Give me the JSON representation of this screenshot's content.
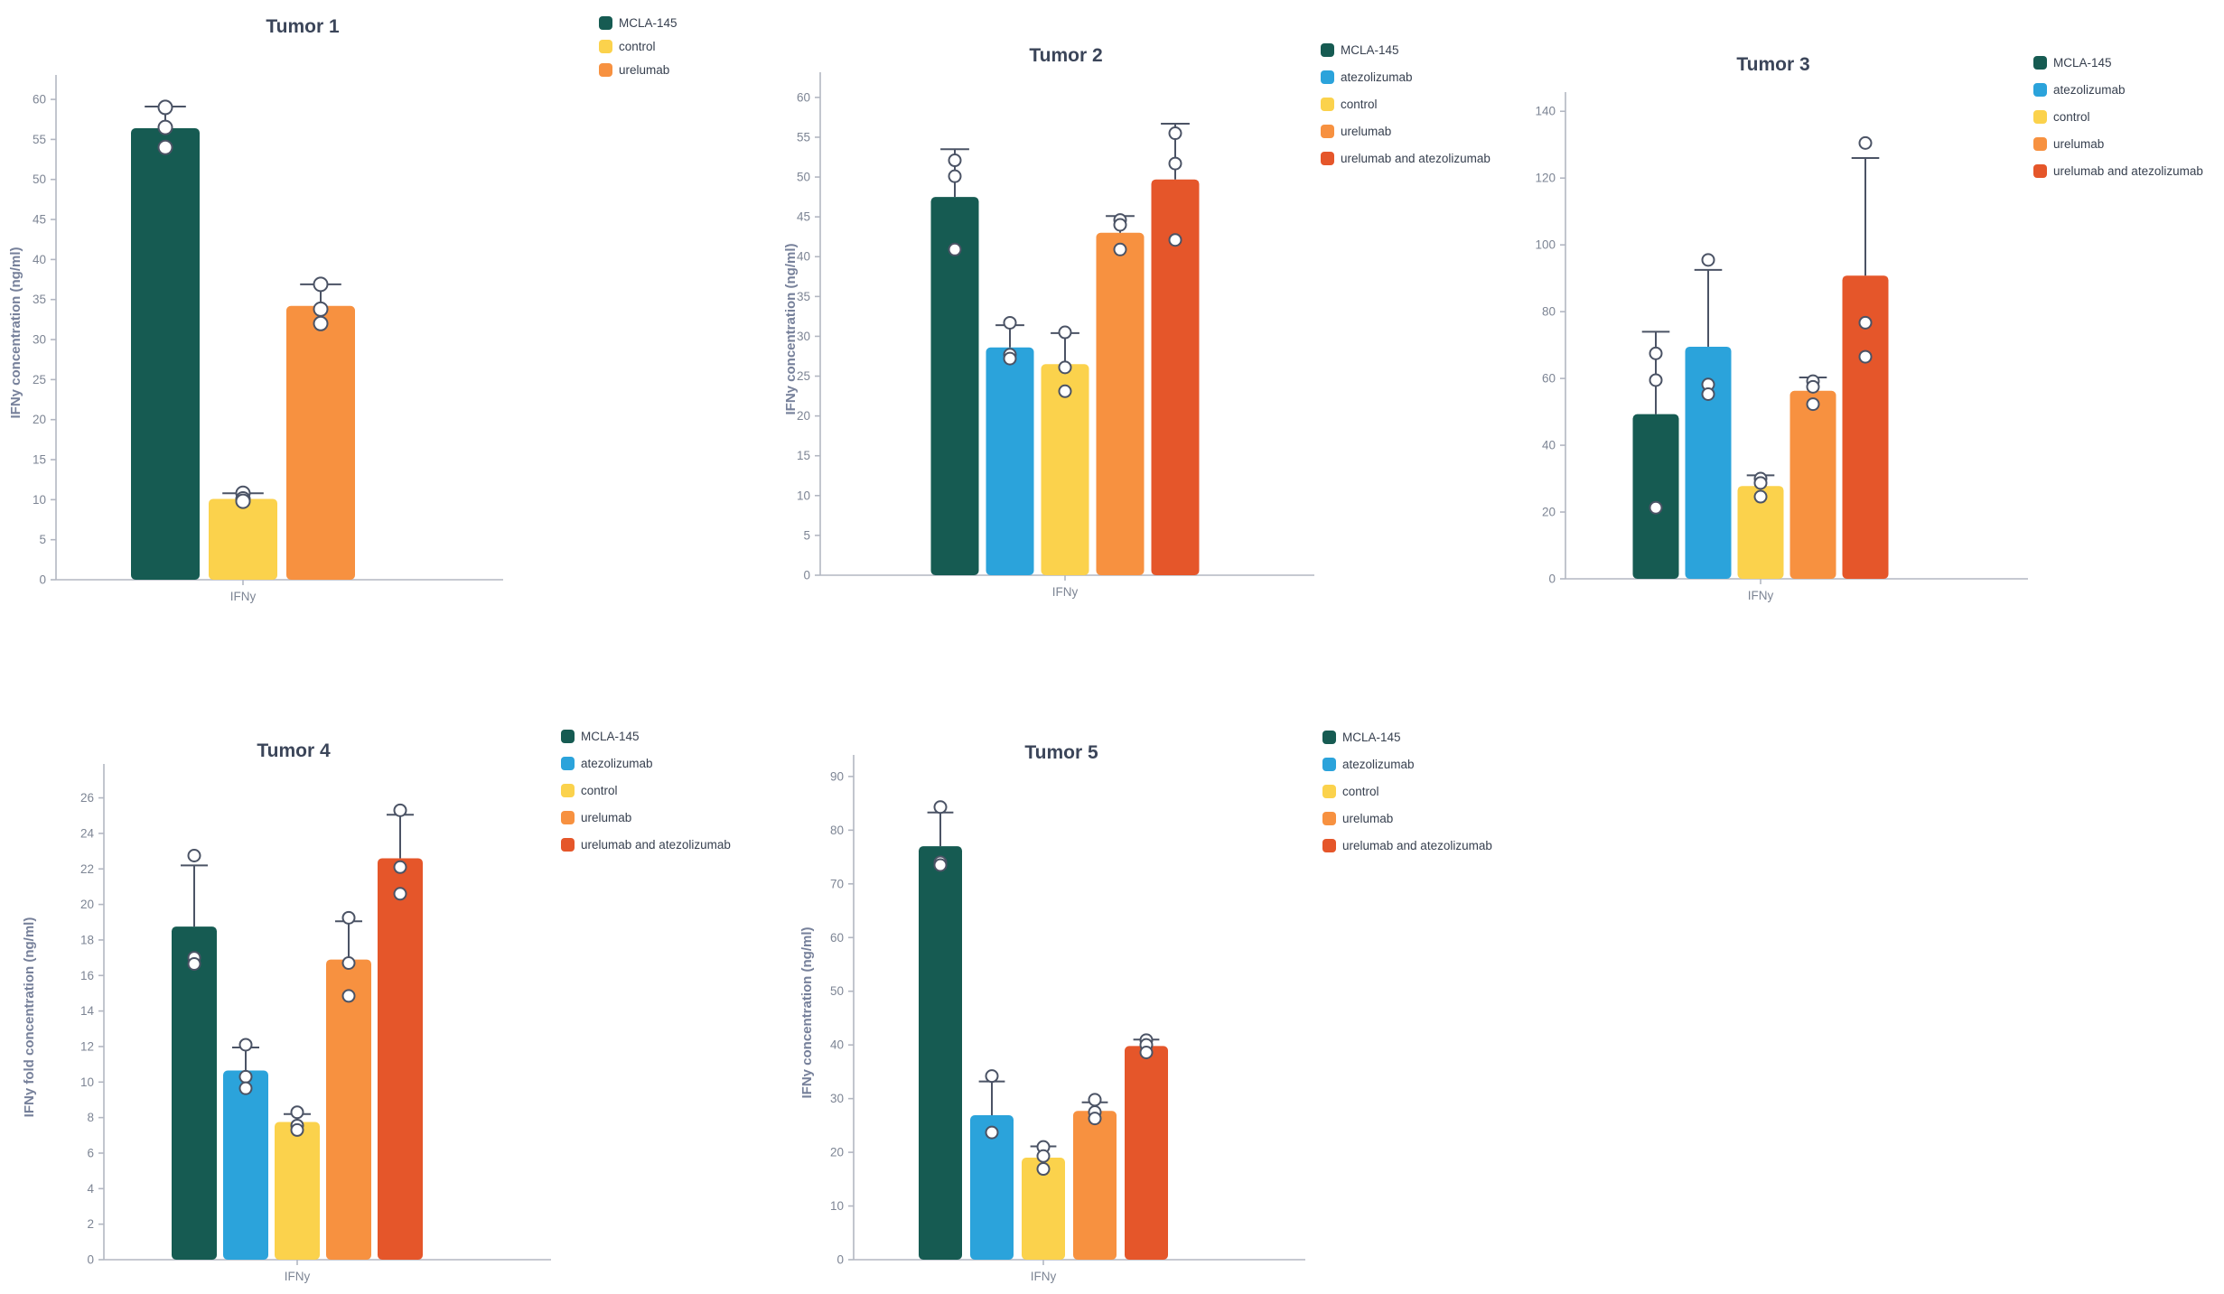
{
  "figure": {
    "background": "#ffffff",
    "x_category": "IFNy",
    "style": {
      "title_color": "#3b4559",
      "tick_label_color": "#7d8594",
      "axis_line_color": "#b3b7c2",
      "y_axis_title_color": "#76809a",
      "error_bar_color": "#4b5365",
      "point_fill": "#ffffff",
      "point_stroke": "#4b5365",
      "legend_text_color": "#37404f"
    },
    "group_colors": {
      "MCLA-145": "#165B52",
      "atezolizumab": "#2BA3DB",
      "control": "#FBD24C",
      "urelumab": "#F79140",
      "urelumab and atezolizumab": "#E5562A"
    }
  },
  "chart_data": [
    {
      "type": "bar",
      "title": "Tumor 1",
      "xlabel": "IFNy",
      "ylabel": "IFNy concentration (ng/ml)",
      "categories": [
        "IFNy"
      ],
      "y_ticks": {
        "min": 0,
        "max": 60,
        "step": 5
      },
      "ylim": [
        0,
        61.7
      ],
      "grid": false,
      "legend_position": "right-top",
      "legend": [
        "MCLA-145",
        "control",
        "urelumab"
      ],
      "series": [
        {
          "name": "MCLA-145",
          "mean": 56.4,
          "error_top": 59.1,
          "points": [
            59.0,
            56.5,
            54.0
          ]
        },
        {
          "name": "control",
          "mean": 10.1,
          "error_top": 10.8,
          "points": [
            10.8,
            10.1,
            9.8
          ]
        },
        {
          "name": "urelumab",
          "mean": 34.2,
          "error_top": 36.9,
          "points": [
            36.9,
            33.8,
            32.0
          ]
        }
      ]
    },
    {
      "type": "bar",
      "title": "Tumor 2",
      "xlabel": "IFNy",
      "ylabel": "IFNy concentration (ng/ml)",
      "categories": [
        "IFNy"
      ],
      "y_ticks": {
        "min": 0,
        "max": 60,
        "step": 5
      },
      "ylim": [
        0,
        61.8
      ],
      "grid": false,
      "legend_position": "right-top",
      "legend": [
        "MCLA-145",
        "atezolizumab",
        "control",
        "urelumab",
        "urelumab and atezolizumab"
      ],
      "series": [
        {
          "name": "MCLA-145",
          "mean": 47.5,
          "error_top": 53.5,
          "points": [
            52.1,
            50.1,
            40.9
          ]
        },
        {
          "name": "atezolizumab",
          "mean": 28.6,
          "error_top": 31.4,
          "points": [
            31.7,
            27.7,
            27.2
          ]
        },
        {
          "name": "control",
          "mean": 26.5,
          "error_top": 30.4,
          "points": [
            30.5,
            26.1,
            23.1
          ]
        },
        {
          "name": "urelumab",
          "mean": 43.0,
          "error_top": 45.1,
          "points": [
            44.6,
            44.0,
            40.9
          ]
        },
        {
          "name": "urelumab and atezolizumab",
          "mean": 49.7,
          "error_top": 56.7,
          "points": [
            55.5,
            51.7,
            42.1
          ]
        }
      ]
    },
    {
      "type": "bar",
      "title": "Tumor 3",
      "xlabel": "IFNy",
      "ylabel": null,
      "categories": [
        "IFNy"
      ],
      "y_ticks": {
        "min": 0,
        "max": 140,
        "step": 20
      },
      "ylim": [
        0,
        142.5
      ],
      "grid": false,
      "legend_position": "right-top",
      "legend": [
        "MCLA-145",
        "atezolizumab",
        "control",
        "urelumab",
        "urelumab and atezolizumab"
      ],
      "series": [
        {
          "name": "MCLA-145",
          "mean": 49.3,
          "error_top": 74.0,
          "points": [
            67.5,
            59.5,
            21.3
          ]
        },
        {
          "name": "atezolizumab",
          "mean": 69.5,
          "error_top": 92.5,
          "points": [
            95.5,
            58.2,
            55.3
          ]
        },
        {
          "name": "control",
          "mean": 27.8,
          "error_top": 31.0,
          "points": [
            30.0,
            28.7,
            24.6
          ]
        },
        {
          "name": "urelumab",
          "mean": 56.3,
          "error_top": 60.3,
          "points": [
            59.2,
            57.5,
            52.3
          ]
        },
        {
          "name": "urelumab and atezolizumab",
          "mean": 90.8,
          "error_top": 126.0,
          "points": [
            130.5,
            76.7,
            66.5
          ]
        }
      ]
    },
    {
      "type": "bar",
      "title": "Tumor 4",
      "xlabel": "IFNy",
      "ylabel": "IFNy fold concentration (ng/ml)",
      "categories": [
        "IFNy"
      ],
      "y_ticks": {
        "min": 0,
        "max": 26,
        "step": 2
      },
      "ylim": [
        0,
        27.3
      ],
      "grid": false,
      "legend_position": "right-top",
      "legend": [
        "MCLA-145",
        "atezolizumab",
        "control",
        "urelumab",
        "urelumab and atezolizumab"
      ],
      "series": [
        {
          "name": "MCLA-145",
          "mean": 18.75,
          "error_top": 22.2,
          "points": [
            22.75,
            17.0,
            16.65
          ]
        },
        {
          "name": "atezolizumab",
          "mean": 10.65,
          "error_top": 11.95,
          "points": [
            12.1,
            10.3,
            9.65
          ]
        },
        {
          "name": "control",
          "mean": 7.75,
          "error_top": 8.2,
          "points": [
            8.3,
            7.55,
            7.3
          ]
        },
        {
          "name": "urelumab",
          "mean": 16.9,
          "error_top": 19.05,
          "points": [
            19.25,
            16.7,
            14.85
          ]
        },
        {
          "name": "urelumab and atezolizumab",
          "mean": 22.6,
          "error_top": 25.05,
          "points": [
            25.3,
            22.1,
            20.6
          ]
        }
      ]
    },
    {
      "type": "bar",
      "title": "Tumor 5",
      "xlabel": "IFNy",
      "ylabel": "IFNy concentration (ng/ml)",
      "categories": [
        "IFNy"
      ],
      "y_ticks": {
        "min": 0,
        "max": 90,
        "step": 10
      },
      "ylim": [
        0,
        92
      ],
      "grid": false,
      "legend_position": "right-top",
      "legend": [
        "MCLA-145",
        "atezolizumab",
        "control",
        "urelumab",
        "urelumab and atezolizumab"
      ],
      "series": [
        {
          "name": "MCLA-145",
          "mean": 77.0,
          "error_top": 83.3,
          "points": [
            84.3,
            74.0,
            73.5
          ]
        },
        {
          "name": "atezolizumab",
          "mean": 26.9,
          "error_top": 33.2,
          "points": [
            34.2,
            23.7
          ]
        },
        {
          "name": "control",
          "mean": 19.0,
          "error_top": 21.1,
          "points": [
            21.0,
            19.3,
            16.9
          ]
        },
        {
          "name": "urelumab",
          "mean": 27.7,
          "error_top": 29.3,
          "points": [
            29.8,
            27.5,
            26.3
          ]
        },
        {
          "name": "urelumab and atezolizumab",
          "mean": 39.8,
          "error_top": 41.0,
          "points": [
            40.9,
            40.0,
            38.6
          ]
        }
      ]
    }
  ]
}
